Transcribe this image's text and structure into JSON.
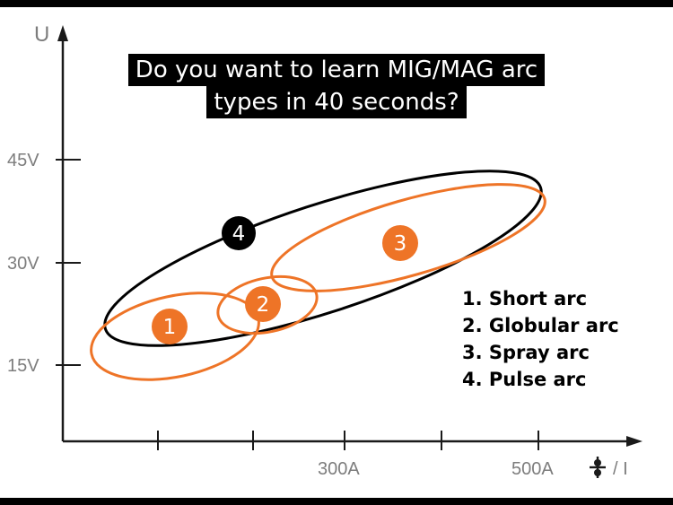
{
  "caption": {
    "line1": "Do you want to learn MIG/MAG arc",
    "line2": "types in 40 seconds?"
  },
  "axes": {
    "y_label": "U",
    "x_label": "/ I",
    "x_icon": "wire-feed-icon",
    "y_ticks": [
      "45V",
      "30V",
      "15V"
    ],
    "x_ticks": [
      "300A",
      "500A"
    ]
  },
  "regions": [
    {
      "id": "1",
      "color": "#ee7427"
    },
    {
      "id": "2",
      "color": "#ee7427"
    },
    {
      "id": "3",
      "color": "#ee7427"
    },
    {
      "id": "4",
      "color": "#000000"
    }
  ],
  "legend": [
    "1. Short arc",
    "2. Globular arc",
    "3. Spray arc",
    "4. Pulse arc"
  ],
  "colors": {
    "accent": "#ee7427",
    "axis": "#7d7d7d",
    "pulse": "#000000"
  }
}
